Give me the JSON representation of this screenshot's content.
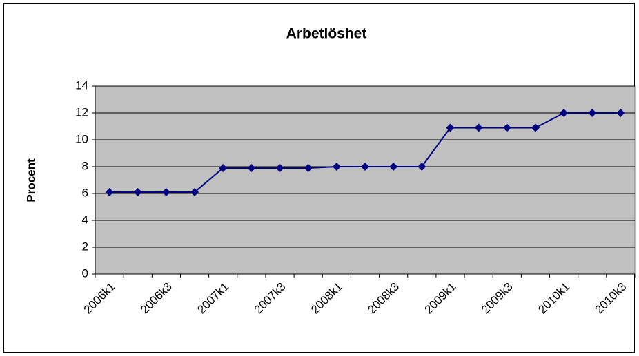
{
  "chart_data": {
    "type": "line",
    "title": "Arbetlöshet",
    "y_label": "Procent",
    "categories": [
      "2006k1",
      null,
      "2006k3",
      null,
      "2007k1",
      null,
      "2007k3",
      null,
      "2008k1",
      null,
      "2008k3",
      null,
      "2009k1",
      null,
      "2009k3",
      null,
      "2010k1",
      null,
      "2010k3"
    ],
    "series": [
      {
        "name": "Arbetlöshet",
        "color": "#000080",
        "values": [
          6.1,
          6.1,
          6.1,
          6.1,
          7.9,
          7.9,
          7.9,
          7.9,
          8.0,
          8.0,
          8.0,
          8.0,
          10.9,
          10.9,
          10.9,
          10.9,
          12.0,
          12.0,
          12.0
        ]
      }
    ],
    "ylim": [
      0,
      14
    ],
    "yticks": [
      0,
      2,
      4,
      6,
      8,
      10,
      12,
      14
    ],
    "grid": true,
    "plot_background": "#c0c0c0"
  }
}
